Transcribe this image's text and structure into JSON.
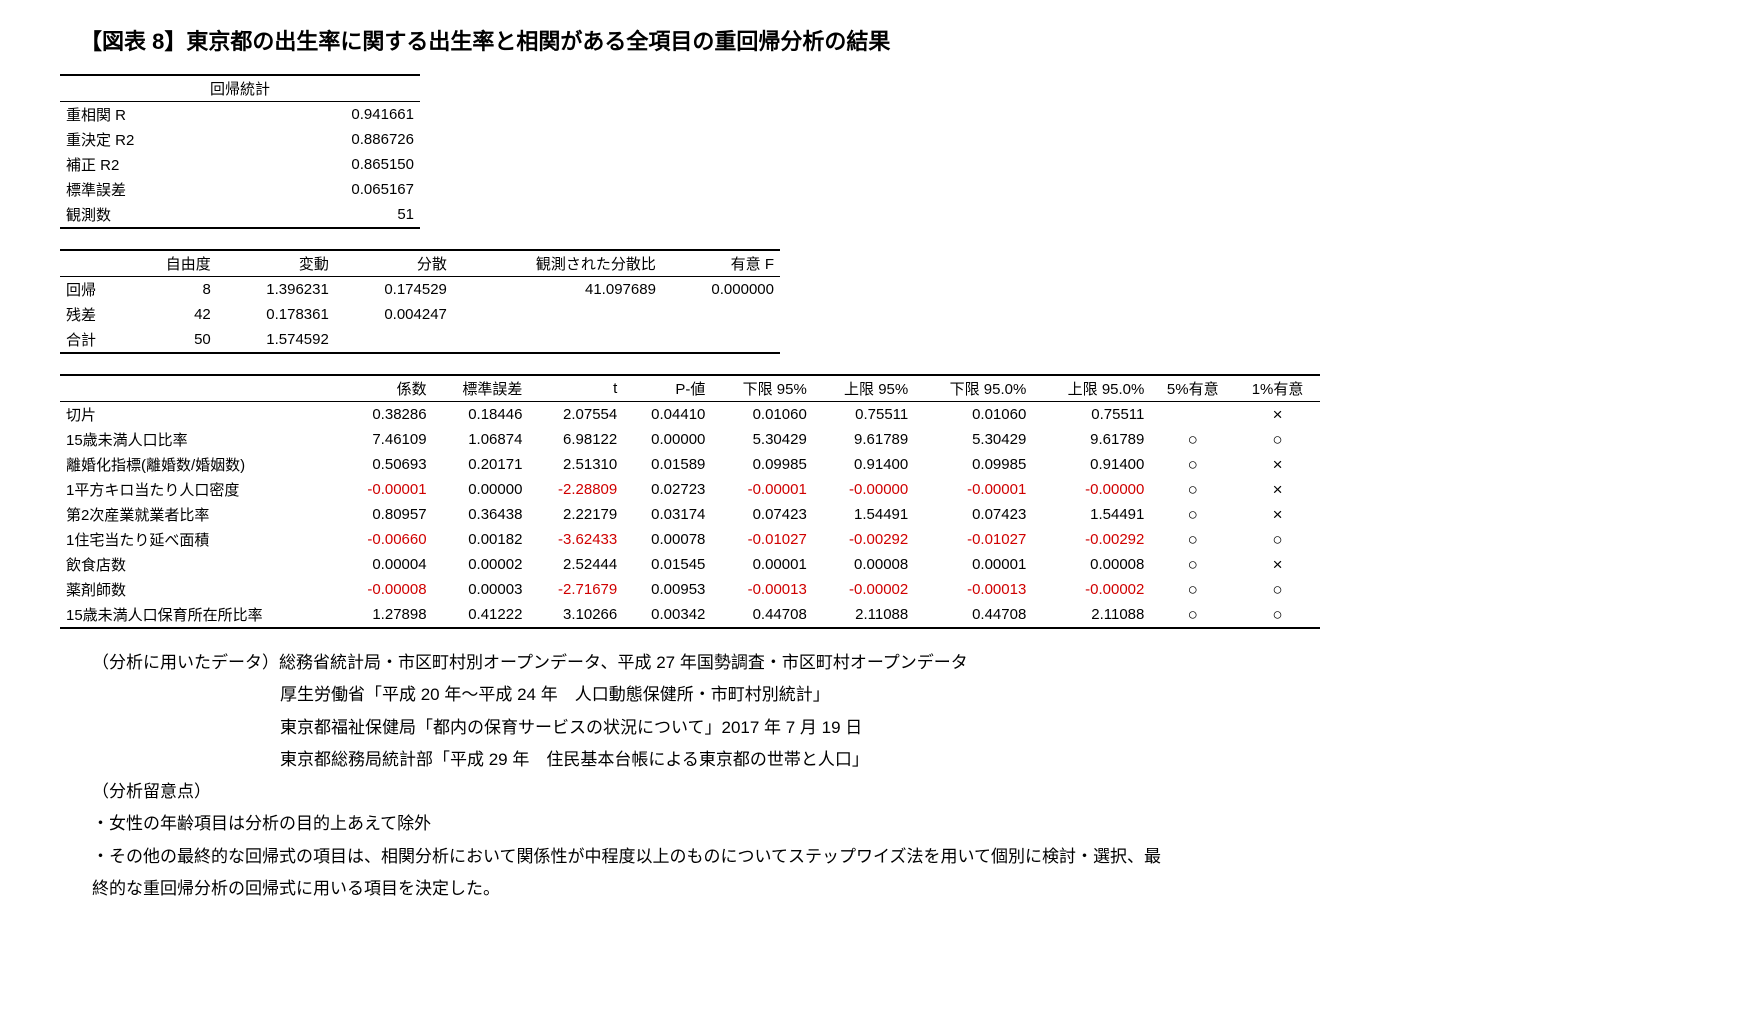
{
  "title": "【図表 8】東京都の出生率に関する出生率と相関がある全項目の重回帰分析の結果",
  "stats": {
    "header": "回帰統計",
    "rows": [
      {
        "label": "重相関 R",
        "value": "0.941661"
      },
      {
        "label": "重決定 R2",
        "value": "0.886726"
      },
      {
        "label": "補正 R2",
        "value": "0.865150"
      },
      {
        "label": "標準誤差",
        "value": "0.065167"
      },
      {
        "label": "観測数",
        "value": "51"
      }
    ]
  },
  "anova": {
    "headers": [
      "",
      "自由度",
      "変動",
      "分散",
      "観測された分散比",
      "有意 F"
    ],
    "rows": [
      {
        "label": "回帰",
        "df": "8",
        "ss": "1.396231",
        "ms": "0.174529",
        "f": "41.097689",
        "sigf": "0.000000"
      },
      {
        "label": "残差",
        "df": "42",
        "ss": "0.178361",
        "ms": "0.004247",
        "f": "",
        "sigf": ""
      },
      {
        "label": "合計",
        "df": "50",
        "ss": "1.574592",
        "ms": "",
        "f": "",
        "sigf": ""
      }
    ]
  },
  "coef": {
    "headers": [
      "",
      "係数",
      "標準誤差",
      "t",
      "P-値",
      "下限 95%",
      "上限 95%",
      "下限 95.0%",
      "上限 95.0%",
      "5%有意",
      "1%有意"
    ],
    "rows": [
      {
        "label": "切片",
        "c": "0.38286",
        "cN": false,
        "se": "0.18446",
        "t": "2.07554",
        "tN": false,
        "p": "0.04410",
        "lo95": "0.01060",
        "lo95N": false,
        "up95": "0.75511",
        "up95N": false,
        "lo950": "0.01060",
        "lo950N": false,
        "up950": "0.75511",
        "up950N": false,
        "s5": "",
        "s1": "×"
      },
      {
        "label": "15歳未満人口比率",
        "c": "7.46109",
        "cN": false,
        "se": "1.06874",
        "t": "6.98122",
        "tN": false,
        "p": "0.00000",
        "lo95": "5.30429",
        "lo95N": false,
        "up95": "9.61789",
        "up95N": false,
        "lo950": "5.30429",
        "lo950N": false,
        "up950": "9.61789",
        "up950N": false,
        "s5": "○",
        "s1": "○"
      },
      {
        "label": "離婚化指標(離婚数/婚姻数)",
        "c": "0.50693",
        "cN": false,
        "se": "0.20171",
        "t": "2.51310",
        "tN": false,
        "p": "0.01589",
        "lo95": "0.09985",
        "lo95N": false,
        "up95": "0.91400",
        "up95N": false,
        "lo950": "0.09985",
        "lo950N": false,
        "up950": "0.91400",
        "up950N": false,
        "s5": "○",
        "s1": "×"
      },
      {
        "label": "1平方キロ当たり人口密度",
        "c": "-0.00001",
        "cN": true,
        "se": "0.00000",
        "t": "-2.28809",
        "tN": true,
        "p": "0.02723",
        "lo95": "-0.00001",
        "lo95N": true,
        "up95": "-0.00000",
        "up95N": true,
        "lo950": "-0.00001",
        "lo950N": true,
        "up950": "-0.00000",
        "up950N": true,
        "s5": "○",
        "s1": "×"
      },
      {
        "label": "第2次産業就業者比率",
        "c": "0.80957",
        "cN": false,
        "se": "0.36438",
        "t": "2.22179",
        "tN": false,
        "p": "0.03174",
        "lo95": "0.07423",
        "lo95N": false,
        "up95": "1.54491",
        "up95N": false,
        "lo950": "0.07423",
        "lo950N": false,
        "up950": "1.54491",
        "up950N": false,
        "s5": "○",
        "s1": "×"
      },
      {
        "label": "1住宅当たり延べ面積",
        "c": "-0.00660",
        "cN": true,
        "se": "0.00182",
        "t": "-3.62433",
        "tN": true,
        "p": "0.00078",
        "lo95": "-0.01027",
        "lo95N": true,
        "up95": "-0.00292",
        "up95N": true,
        "lo950": "-0.01027",
        "lo950N": true,
        "up950": "-0.00292",
        "up950N": true,
        "s5": "○",
        "s1": "○"
      },
      {
        "label": "飲食店数",
        "c": "0.00004",
        "cN": false,
        "se": "0.00002",
        "t": "2.52444",
        "tN": false,
        "p": "0.01545",
        "lo95": "0.00001",
        "lo95N": false,
        "up95": "0.00008",
        "up95N": false,
        "lo950": "0.00001",
        "lo950N": false,
        "up950": "0.00008",
        "up950N": false,
        "s5": "○",
        "s1": "×"
      },
      {
        "label": "薬剤師数",
        "c": "-0.00008",
        "cN": true,
        "se": "0.00003",
        "t": "-2.71679",
        "tN": true,
        "p": "0.00953",
        "lo95": "-0.00013",
        "lo95N": true,
        "up95": "-0.00002",
        "up95N": true,
        "lo950": "-0.00013",
        "lo950N": true,
        "up950": "-0.00002",
        "up950N": true,
        "s5": "○",
        "s1": "○"
      },
      {
        "label": "15歳未満人口保育所在所比率",
        "c": "1.27898",
        "cN": false,
        "se": "0.41222",
        "t": "3.10266",
        "tN": false,
        "p": "0.00342",
        "lo95": "0.44708",
        "lo95N": false,
        "up95": "2.11088",
        "up95N": false,
        "lo950": "0.44708",
        "lo950N": false,
        "up950": "2.11088",
        "up950N": false,
        "s5": "○",
        "s1": "○"
      }
    ]
  },
  "notes": {
    "sourceHead": "（分析に用いたデータ）総務省統計局・市区町村別オープンデータ、平成 27 年国勢調査・市区町村オープンデータ",
    "sources": [
      "厚生労働省「平成 20 年～平成 24 年　人口動態保健所・市町村別統計」",
      "東京都福祉保健局「都内の保育サービスの状況について」2017 年 7 月 19 日",
      "東京都総務局統計部「平成 29 年　住民基本台帳による東京都の世帯と人口」"
    ],
    "noteHead": "（分析留意点）",
    "bullets": [
      "・女性の年齢項目は分析の目的上あえて除外",
      "・その他の最終的な回帰式の項目は、相関分析において関係性が中程度以上のものについてステップワイズ法を用いて個別に検討・選択、最"
    ],
    "bulletCont": "終的な重回帰分析の回帰式に用いる項目を決定した。"
  }
}
